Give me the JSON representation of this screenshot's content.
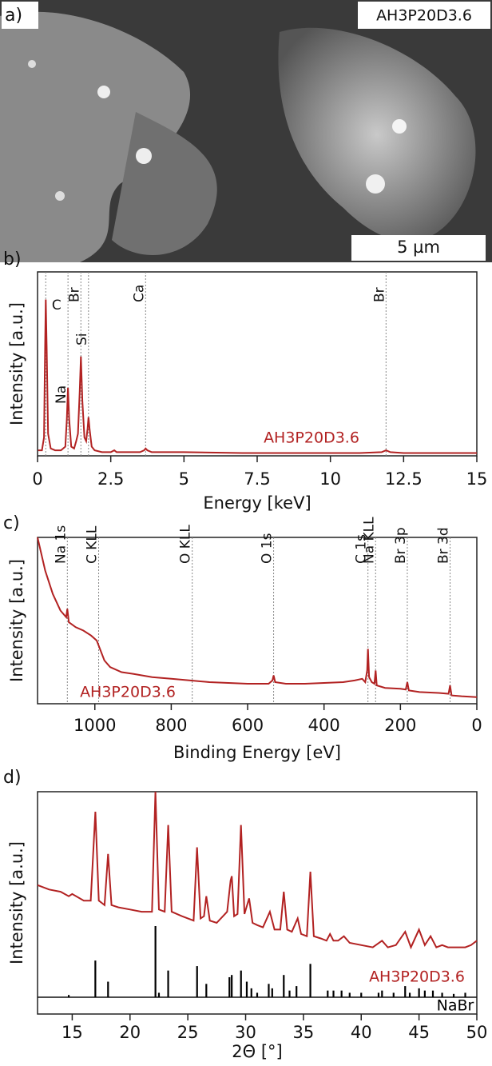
{
  "chart_data": [
    {
      "type": "image",
      "panel": "a)",
      "label": "AH3P20D3.6",
      "scale_bar": "5 µm"
    },
    {
      "type": "line",
      "panel": "b)",
      "xlabel": "Energy [keV]",
      "ylabel": "Intensity [a.u.]",
      "xlim": [
        0,
        15
      ],
      "ylim": [
        0,
        100
      ],
      "xticks": [
        0,
        2.5,
        5,
        7.5,
        10,
        12.5,
        15
      ],
      "annotations": [
        {
          "text": "C",
          "x": 0.28
        },
        {
          "text": "Na",
          "x": 1.04
        },
        {
          "text": "Br",
          "x": 1.48
        },
        {
          "text": "Si",
          "x": 1.74
        },
        {
          "text": "Ca",
          "x": 3.69
        },
        {
          "text": "Br",
          "x": 11.9
        }
      ],
      "series": [
        {
          "name": "AH3P20D3.6",
          "color": "#b22222",
          "x": [
            0.02,
            0.15,
            0.22,
            0.26,
            0.28,
            0.31,
            0.36,
            0.45,
            0.6,
            0.8,
            0.95,
            1.0,
            1.04,
            1.08,
            1.15,
            1.25,
            1.32,
            1.38,
            1.44,
            1.48,
            1.53,
            1.6,
            1.66,
            1.71,
            1.74,
            1.78,
            1.85,
            1.95,
            2.2,
            2.5,
            2.62,
            2.7,
            3.0,
            3.5,
            3.64,
            3.69,
            3.75,
            3.9,
            5,
            7,
            9,
            11,
            11.75,
            11.9,
            12.05,
            12.5,
            13.5,
            15
          ],
          "values": [
            3,
            3,
            10,
            60,
            85,
            60,
            12,
            4,
            3,
            3,
            5,
            20,
            37,
            20,
            5,
            4,
            8,
            12,
            35,
            54,
            30,
            10,
            8,
            15,
            21,
            14,
            5,
            3,
            2,
            2,
            3,
            2,
            2,
            2,
            3,
            4,
            3,
            2,
            2,
            1.5,
            1.5,
            1.5,
            2,
            3,
            2,
            1.5,
            1.5,
            1.5
          ]
        }
      ]
    },
    {
      "type": "line",
      "panel": "c)",
      "xlabel": "Binding Energy [eV]",
      "ylabel": "Intensity [a.u.]",
      "xlim": [
        1150,
        0
      ],
      "ylim": [
        0,
        100
      ],
      "xticks": [
        1000,
        800,
        600,
        400,
        200,
        0
      ],
      "annotations": [
        {
          "text": "Na 1s",
          "x": 1072
        },
        {
          "text": "C KLL",
          "x": 990
        },
        {
          "text": "O KLL",
          "x": 745
        },
        {
          "text": "O 1s",
          "x": 532
        },
        {
          "text": "C 1s",
          "x": 285
        },
        {
          "text": "Na KLL",
          "x": 265
        },
        {
          "text": "Br 3p",
          "x": 182
        },
        {
          "text": "Br 3d",
          "x": 70
        }
      ],
      "series": [
        {
          "name": "AH3P20D3.6",
          "color": "#b22222",
          "x": [
            1150,
            1130,
            1110,
            1090,
            1075,
            1072,
            1068,
            1050,
            1030,
            1010,
            995,
            985,
            975,
            960,
            930,
            900,
            850,
            800,
            750,
            700,
            650,
            600,
            545,
            535,
            532,
            528,
            500,
            450,
            400,
            350,
            320,
            300,
            292,
            287,
            285,
            282,
            275,
            268,
            265,
            262,
            240,
            200,
            186,
            182,
            178,
            150,
            100,
            74,
            70,
            66,
            40,
            0
          ],
          "values": [
            100,
            80,
            66,
            56,
            52,
            57,
            49,
            46,
            44,
            41,
            38,
            32,
            26,
            22,
            19,
            18,
            16,
            15,
            14,
            13,
            12.5,
            12,
            12,
            14,
            17,
            13,
            12,
            12,
            12.5,
            13,
            14,
            15,
            13,
            20,
            33,
            16,
            13,
            12,
            20,
            11,
            9.5,
            9,
            8.5,
            13,
            8,
            7,
            6.5,
            6,
            11,
            5,
            4.5,
            4
          ]
        }
      ]
    },
    {
      "type": "line",
      "panel": "d)",
      "xlabel": "2Θ [°]",
      "ylabel": "Intensity [a.u.]",
      "xlim": [
        12,
        50
      ],
      "ylim": [
        0,
        100
      ],
      "xticks": [
        15,
        20,
        25,
        30,
        35,
        40,
        45,
        50
      ],
      "series": [
        {
          "name": "AH3P20D3.6",
          "color": "#b22222",
          "x": [
            12,
            13,
            14,
            14.7,
            15,
            16,
            16.6,
            17.0,
            17.3,
            17.8,
            18.1,
            18.4,
            19,
            20,
            21,
            21.9,
            22.2,
            22.5,
            23.0,
            23.3,
            23.6,
            24.5,
            25.5,
            25.8,
            26.1,
            26.4,
            26.6,
            26.9,
            27.5,
            28.4,
            28.7,
            28.8,
            29.0,
            29.3,
            29.6,
            29.9,
            30.3,
            30.6,
            31,
            31.5,
            32.1,
            32.5,
            33.0,
            33.3,
            33.6,
            34.0,
            34.5,
            34.8,
            35.3,
            35.6,
            35.9,
            36.5,
            37.0,
            37.3,
            37.6,
            38,
            38.5,
            39,
            40,
            41,
            41.8,
            42.3,
            43,
            43.8,
            44.3,
            45,
            45.5,
            46.0,
            46.5,
            47,
            47.5,
            48,
            49,
            49.5,
            50
          ],
          "values": [
            58,
            56,
            55,
            53,
            54,
            51,
            51,
            91,
            51,
            49,
            72,
            49,
            48,
            47,
            46,
            46,
            100,
            47,
            46,
            85,
            46,
            44,
            42,
            75,
            43,
            44,
            53,
            42,
            41,
            46,
            60,
            62,
            44,
            45,
            85,
            45,
            52,
            41,
            40,
            39,
            46,
            38,
            38,
            55,
            38,
            37,
            43,
            36,
            35,
            64,
            35,
            34,
            33,
            36,
            33,
            33,
            35,
            32,
            31,
            30,
            33,
            30,
            31,
            37,
            30,
            38,
            31,
            35,
            30,
            31,
            30,
            30,
            30,
            31,
            33
          ]
        },
        {
          "name": "NaBr",
          "color": "#000000",
          "style": "stick",
          "x": [
            14.7,
            17.0,
            18.1,
            22.2,
            22.5,
            23.3,
            25.8,
            26.6,
            28.6,
            28.8,
            29.6,
            30.1,
            30.5,
            31.0,
            32.0,
            32.3,
            33.3,
            33.8,
            34.4,
            35.6,
            37.1,
            37.6,
            38.3,
            39.0,
            40.0,
            41.5,
            41.8,
            42.8,
            43.8,
            44.2,
            45.0,
            45.5,
            46.2,
            47.0,
            48.0,
            49.0
          ],
          "values": [
            1,
            16.5,
            7,
            32,
            2,
            12,
            14,
            6,
            9,
            10,
            12,
            7,
            4,
            2,
            6,
            4,
            10,
            3,
            5,
            15,
            3,
            3,
            3,
            2,
            2,
            2,
            3,
            2,
            5,
            2,
            4,
            3,
            3,
            2,
            1.5,
            2
          ]
        }
      ]
    }
  ]
}
